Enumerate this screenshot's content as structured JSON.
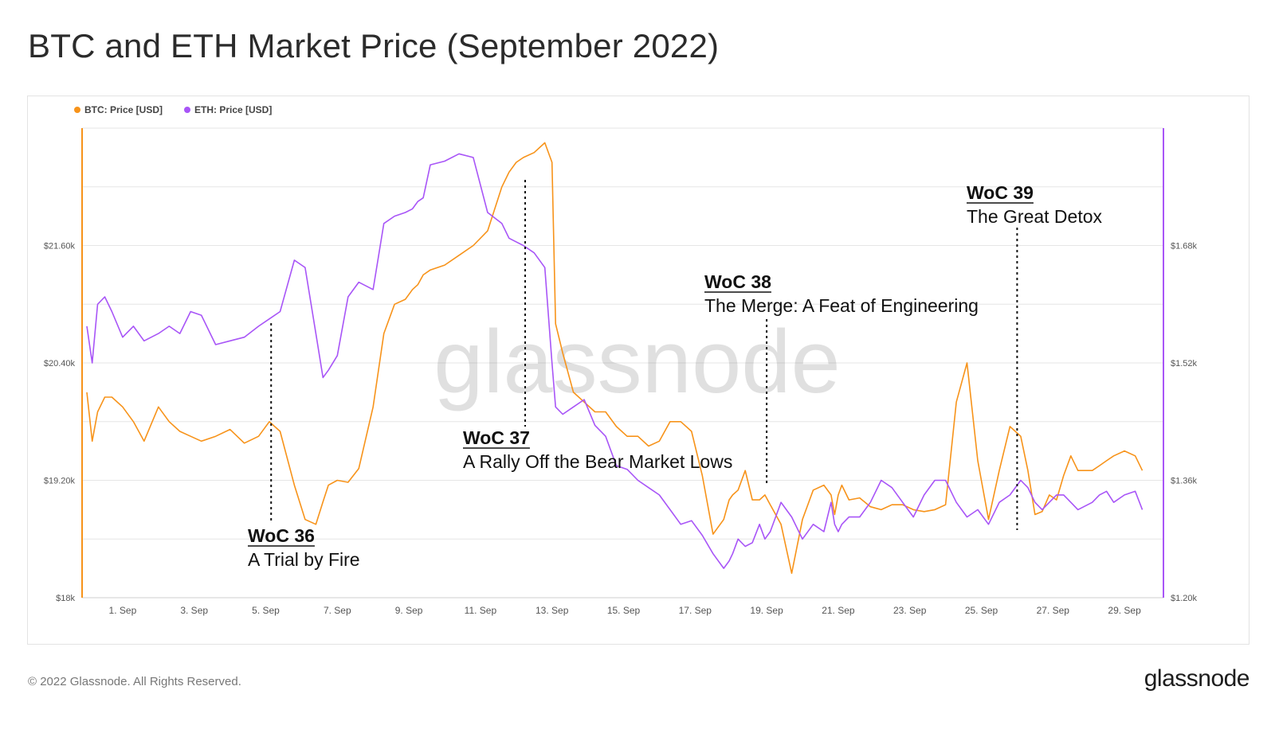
{
  "title": "BTC and ETH Market Price (September 2022)",
  "footer": {
    "copyright": "© 2022 Glassnode. All Rights Reserved.",
    "logo": "glassnode"
  },
  "watermark": "glassnode",
  "colors": {
    "btc": "#f7931a",
    "eth": "#a855f7",
    "grid": "#e6e6e6",
    "axis_text": "#555555"
  },
  "chart_data": {
    "type": "line",
    "title": "",
    "legend": [
      "BTC: Price [USD]",
      "ETH: Price [USD]"
    ],
    "legend_position": "top-left",
    "grid": true,
    "x_ticks": [
      "1. Sep",
      "3. Sep",
      "5. Sep",
      "7. Sep",
      "9. Sep",
      "11. Sep",
      "13. Sep",
      "15. Sep",
      "17. Sep",
      "19. Sep",
      "21. Sep",
      "23. Sep",
      "25. Sep",
      "27. Sep",
      "29. Sep"
    ],
    "y_left": {
      "range": [
        18000,
        22800
      ],
      "ticks": [
        18000,
        19200,
        20400,
        21600
      ],
      "tick_labels": [
        "$18k",
        "$19.20k",
        "$20.40k",
        "$21.60k"
      ]
    },
    "y_right": {
      "range": [
        1200,
        1840
      ],
      "ticks": [
        1200,
        1360,
        1520,
        1680
      ],
      "tick_labels": [
        "$1.20k",
        "$1.36k",
        "$1.52k",
        "$1.68k"
      ]
    },
    "series": [
      {
        "name": "BTC: Price [USD]",
        "axis": "left",
        "x": [
          0.0,
          0.15,
          0.3,
          0.5,
          0.7,
          1.0,
          1.3,
          1.6,
          2.0,
          2.3,
          2.6,
          2.9,
          3.2,
          3.6,
          4.0,
          4.4,
          4.8,
          5.1,
          5.4,
          5.8,
          6.1,
          6.4,
          6.6,
          6.75,
          7.0,
          7.3,
          7.6,
          8.0,
          8.3,
          8.6,
          8.9,
          9.1,
          9.25,
          9.4,
          9.6,
          10.0,
          10.4,
          10.8,
          11.2,
          11.6,
          11.8,
          12.0,
          12.2,
          12.5,
          12.8,
          13.0,
          13.1,
          13.3,
          13.6,
          13.9,
          14.2,
          14.5,
          14.8,
          15.1,
          15.4,
          15.7,
          16.0,
          16.3,
          16.6,
          16.9,
          17.2,
          17.5,
          17.8,
          17.95,
          18.05,
          18.2,
          18.4,
          18.6,
          18.8,
          18.95,
          19.1,
          19.4,
          19.7,
          20.0,
          20.3,
          20.6,
          20.8,
          20.9,
          21.0,
          21.1,
          21.3,
          21.6,
          21.9,
          22.2,
          22.5,
          22.8,
          23.1,
          23.4,
          23.7,
          24.0,
          24.3,
          24.6,
          24.9,
          25.2,
          25.5,
          25.8,
          26.1,
          26.3,
          26.5,
          26.7,
          26.9,
          27.1,
          27.3,
          27.5,
          27.7,
          27.9,
          28.1,
          28.3,
          28.5,
          28.7,
          29.0,
          29.3,
          29.5
        ],
        "values": [
          20100,
          19600,
          19900,
          20050,
          20050,
          19950,
          19800,
          19600,
          19950,
          19800,
          19700,
          19650,
          19600,
          19650,
          19720,
          19580,
          19650,
          19800,
          19700,
          19150,
          18800,
          18750,
          18980,
          19150,
          19200,
          19180,
          19320,
          19950,
          20700,
          21000,
          21050,
          21150,
          21200,
          21300,
          21350,
          21400,
          21500,
          21600,
          21750,
          22200,
          22350,
          22450,
          22500,
          22550,
          22650,
          22450,
          20800,
          20500,
          20100,
          20000,
          19900,
          19900,
          19750,
          19650,
          19650,
          19550,
          19600,
          19800,
          19800,
          19700,
          19250,
          18650,
          18800,
          19000,
          19050,
          19100,
          19300,
          19000,
          19000,
          19050,
          18950,
          18750,
          18250,
          18800,
          19100,
          19150,
          19050,
          18850,
          19050,
          19150,
          19000,
          19020,
          18930,
          18900,
          18950,
          18950,
          18900,
          18880,
          18900,
          18950,
          20000,
          20400,
          19400,
          18800,
          19300,
          19750,
          19650,
          19300,
          18850,
          18880,
          19050,
          19000,
          19250,
          19450,
          19300,
          19300,
          19300,
          19350,
          19400,
          19450,
          19500,
          19450,
          19300
        ]
      },
      {
        "name": "ETH: Price [USD]",
        "axis": "right",
        "x": [
          0.0,
          0.15,
          0.3,
          0.5,
          0.7,
          1.0,
          1.3,
          1.6,
          2.0,
          2.3,
          2.6,
          2.9,
          3.2,
          3.6,
          4.0,
          4.4,
          4.8,
          5.1,
          5.4,
          5.8,
          6.1,
          6.4,
          6.6,
          6.75,
          7.0,
          7.3,
          7.6,
          8.0,
          8.3,
          8.6,
          8.9,
          9.1,
          9.25,
          9.4,
          9.6,
          10.0,
          10.4,
          10.8,
          11.2,
          11.6,
          11.8,
          12.0,
          12.2,
          12.5,
          12.8,
          13.0,
          13.1,
          13.3,
          13.6,
          13.9,
          14.2,
          14.5,
          14.8,
          15.1,
          15.4,
          15.7,
          16.0,
          16.3,
          16.6,
          16.9,
          17.2,
          17.5,
          17.8,
          17.95,
          18.05,
          18.2,
          18.4,
          18.6,
          18.8,
          18.95,
          19.1,
          19.4,
          19.7,
          20.0,
          20.3,
          20.6,
          20.8,
          20.9,
          21.0,
          21.1,
          21.3,
          21.6,
          21.9,
          22.2,
          22.5,
          22.8,
          23.1,
          23.4,
          23.7,
          24.0,
          24.3,
          24.6,
          24.9,
          25.2,
          25.5,
          25.8,
          26.1,
          26.3,
          26.5,
          26.7,
          26.9,
          27.1,
          27.3,
          27.5,
          27.7,
          27.9,
          28.1,
          28.3,
          28.5,
          28.7,
          29.0,
          29.3,
          29.5
        ],
        "values": [
          1570,
          1520,
          1600,
          1610,
          1590,
          1555,
          1570,
          1550,
          1560,
          1570,
          1560,
          1590,
          1585,
          1545,
          1550,
          1555,
          1570,
          1580,
          1590,
          1660,
          1650,
          1560,
          1500,
          1510,
          1530,
          1610,
          1630,
          1620,
          1710,
          1720,
          1725,
          1730,
          1740,
          1745,
          1790,
          1795,
          1805,
          1800,
          1725,
          1710,
          1690,
          1685,
          1680,
          1670,
          1650,
          1520,
          1460,
          1450,
          1460,
          1470,
          1435,
          1420,
          1380,
          1375,
          1360,
          1350,
          1340,
          1320,
          1300,
          1305,
          1285,
          1260,
          1240,
          1250,
          1260,
          1280,
          1270,
          1275,
          1300,
          1280,
          1290,
          1330,
          1310,
          1280,
          1300,
          1290,
          1330,
          1300,
          1290,
          1300,
          1310,
          1310,
          1330,
          1360,
          1350,
          1330,
          1310,
          1340,
          1360,
          1360,
          1330,
          1310,
          1320,
          1300,
          1330,
          1340,
          1360,
          1350,
          1330,
          1320,
          1330,
          1340,
          1340,
          1330,
          1320,
          1325,
          1330,
          1340,
          1345,
          1330,
          1340,
          1345,
          1320
        ]
      }
    ],
    "annotations": [
      {
        "title": "WoC 36",
        "subtitle": "A Trial by Fire",
        "x": 5.15
      },
      {
        "title": "WoC 37",
        "subtitle": "A Rally Off the Bear Market Lows",
        "x": 12.25
      },
      {
        "title": "WoC 38",
        "subtitle": "The Merge: A Feat of Engineering",
        "x": 19.0
      },
      {
        "title": "WoC 39",
        "subtitle": "The Great Detox",
        "x": 26.0
      }
    ]
  }
}
